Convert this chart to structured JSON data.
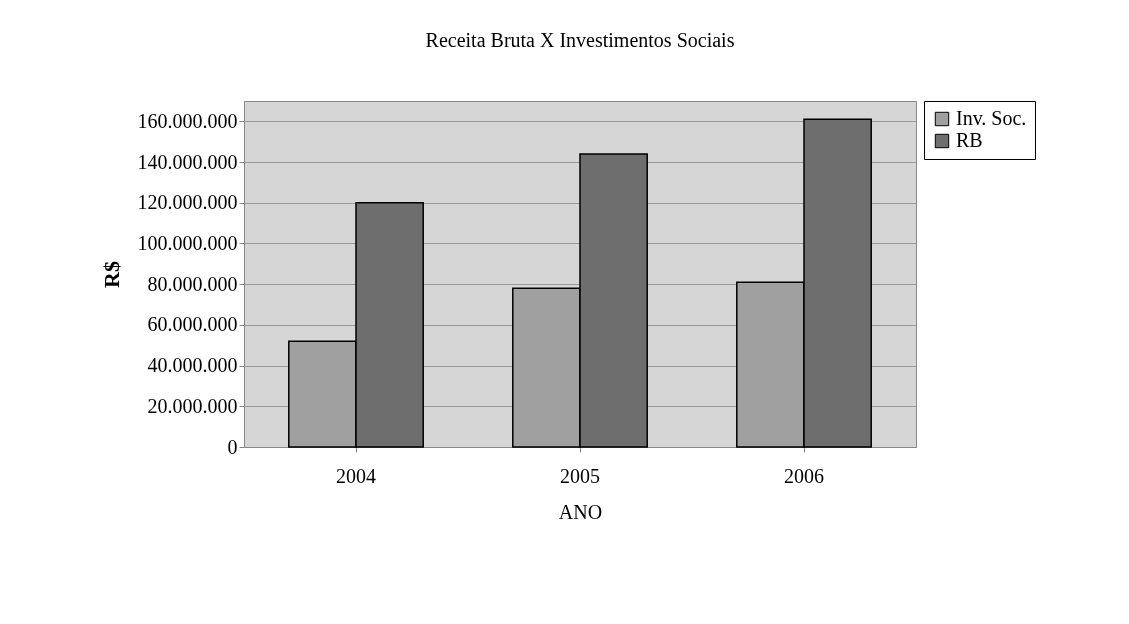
{
  "chart_data": {
    "type": "bar",
    "title": "Receita Bruta X Investimentos Sociais",
    "xlabel": "ANO",
    "ylabel": "R$",
    "categories": [
      "2004",
      "2005",
      "2006"
    ],
    "series": [
      {
        "name": "Inv. Soc.",
        "color": "#a0a0a0",
        "values": [
          52000000,
          78000000,
          81000000
        ]
      },
      {
        "name": "RB",
        "color": "#6e6e6e",
        "values": [
          120000000,
          144000000,
          161000000
        ]
      }
    ],
    "ylim": [
      0,
      170000000
    ],
    "yticks": [
      0,
      {
        "value": 20000000,
        "label": "20.000.000"
      },
      {
        "value": 40000000,
        "label": "40.000.000"
      },
      {
        "value": 60000000,
        "label": "60.000.000"
      },
      {
        "value": 80000000,
        "label": "80.000.000"
      },
      {
        "value": 100000000,
        "label": "100.000.000"
      },
      {
        "value": 120000000,
        "label": "120.000.000"
      },
      {
        "value": 140000000,
        "label": "140.000.000"
      },
      {
        "value": 160000000,
        "label": "160.000.000"
      }
    ],
    "grid": "y",
    "legend": "right"
  }
}
